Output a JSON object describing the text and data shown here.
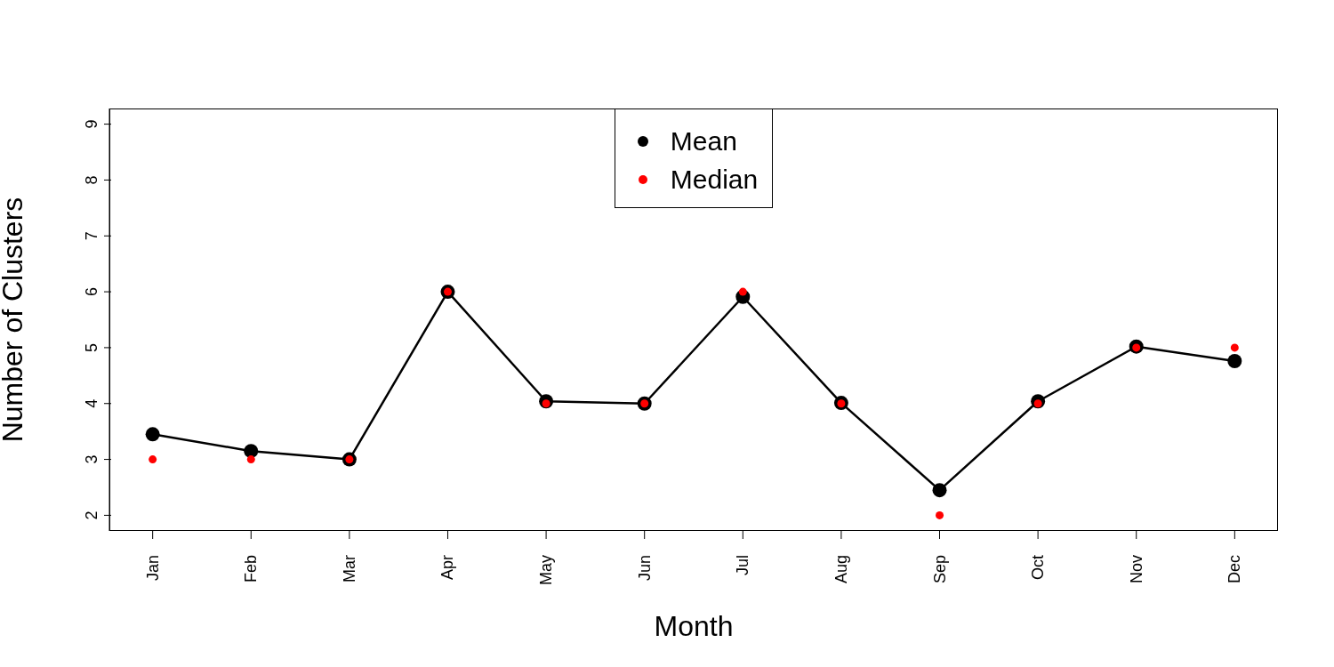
{
  "chart_data": {
    "type": "line",
    "xlabel": "Month",
    "ylabel": "Number of Clusters",
    "categories": [
      "Jan",
      "Feb",
      "Mar",
      "Apr",
      "May",
      "Jun",
      "Jul",
      "Aug",
      "Sep",
      "Oct",
      "Nov",
      "Dec"
    ],
    "series": [
      {
        "name": "Mean",
        "type": "line",
        "color": "#000000",
        "marker": "circle",
        "values": [
          3.45,
          3.15,
          3.0,
          6.0,
          4.04,
          4.0,
          5.91,
          4.01,
          2.45,
          4.04,
          5.02,
          4.76
        ]
      },
      {
        "name": "Median",
        "type": "scatter",
        "color": "#ff0000",
        "marker": "circle",
        "values": [
          3,
          3,
          3,
          6,
          4,
          4,
          6,
          4,
          2,
          4,
          5,
          5
        ]
      }
    ],
    "ylim": [
      1.72,
      9.28
    ],
    "yticks": [
      2,
      3,
      4,
      5,
      6,
      7,
      8,
      9
    ],
    "grid": false,
    "legend": "top"
  }
}
